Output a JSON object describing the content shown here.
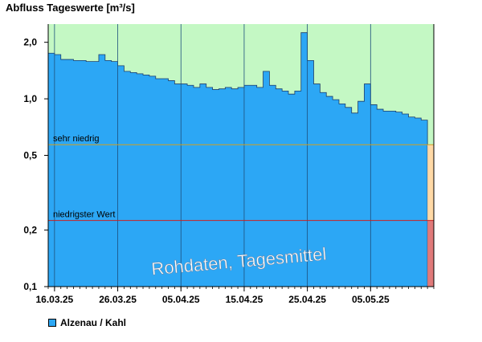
{
  "chart_data": {
    "type": "area",
    "title": "Abfluss Tageswerte [m³/s]",
    "y_scale": "log",
    "ylim": [
      0.1,
      2.5
    ],
    "y_ticks": [
      {
        "value": 0.1,
        "label": "0,1"
      },
      {
        "value": 0.2,
        "label": "0,2"
      },
      {
        "value": 0.5,
        "label": "0,5"
      },
      {
        "value": 1.0,
        "label": "1,0"
      },
      {
        "value": 2.0,
        "label": "2,0"
      }
    ],
    "x_start": "2025-03-15",
    "x_end": "2025-05-15",
    "x_ticks": [
      "16.03.25",
      "26.03.25",
      "05.04.25",
      "15.04.25",
      "25.04.25",
      "05.05.25"
    ],
    "grid_x_dates": [
      "2025-03-16",
      "2025-03-26",
      "2025-04-05",
      "2025-04-15",
      "2025-04-25",
      "2025-05-05"
    ],
    "thresholds": [
      {
        "label": "sehr niedrig",
        "value": 0.57,
        "color": "#ffd9a6",
        "line_color": "#d0a020"
      },
      {
        "label": "niedrigster Wert",
        "value": 0.225,
        "color": "#e07a7a",
        "line_color": "#cc2020"
      }
    ],
    "background_color": "#c4f8c4",
    "watermark": "Rohdaten, Tagesmittel",
    "series": [
      {
        "name": "Alzenau / Kahl",
        "color": "#2ca7f5",
        "x": [
          "2025-03-15",
          "2025-03-16",
          "2025-03-17",
          "2025-03-18",
          "2025-03-19",
          "2025-03-20",
          "2025-03-21",
          "2025-03-22",
          "2025-03-23",
          "2025-03-24",
          "2025-03-25",
          "2025-03-26",
          "2025-03-27",
          "2025-03-28",
          "2025-03-29",
          "2025-03-30",
          "2025-03-31",
          "2025-04-01",
          "2025-04-02",
          "2025-04-03",
          "2025-04-04",
          "2025-04-05",
          "2025-04-06",
          "2025-04-07",
          "2025-04-08",
          "2025-04-09",
          "2025-04-10",
          "2025-04-11",
          "2025-04-12",
          "2025-04-13",
          "2025-04-14",
          "2025-04-15",
          "2025-04-16",
          "2025-04-17",
          "2025-04-18",
          "2025-04-19",
          "2025-04-20",
          "2025-04-21",
          "2025-04-22",
          "2025-04-23",
          "2025-04-24",
          "2025-04-25",
          "2025-04-26",
          "2025-04-27",
          "2025-04-28",
          "2025-04-29",
          "2025-04-30",
          "2025-05-01",
          "2025-05-02",
          "2025-05-03",
          "2025-05-04",
          "2025-05-05",
          "2025-05-06",
          "2025-05-07",
          "2025-05-08",
          "2025-05-09",
          "2025-05-10",
          "2025-05-11",
          "2025-05-12",
          "2025-05-13"
        ],
        "values": [
          1.75,
          1.72,
          1.62,
          1.62,
          1.6,
          1.6,
          1.58,
          1.58,
          1.72,
          1.6,
          1.58,
          1.5,
          1.4,
          1.38,
          1.36,
          1.34,
          1.32,
          1.28,
          1.28,
          1.25,
          1.2,
          1.2,
          1.18,
          1.15,
          1.2,
          1.15,
          1.12,
          1.13,
          1.15,
          1.13,
          1.15,
          1.18,
          1.18,
          1.15,
          1.4,
          1.18,
          1.13,
          1.1,
          1.06,
          1.1,
          2.25,
          1.6,
          1.2,
          1.08,
          1.03,
          0.99,
          0.94,
          0.9,
          0.84,
          0.97,
          1.2,
          0.93,
          0.88,
          0.86,
          0.86,
          0.85,
          0.83,
          0.8,
          0.79,
          0.77
        ]
      }
    ]
  }
}
